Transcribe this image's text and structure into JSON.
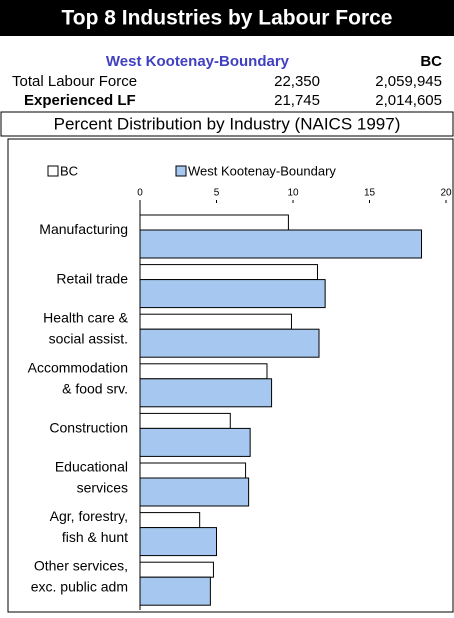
{
  "header": {
    "title": "Top 8 Industries by Labour Force",
    "columns": [
      "West Kootenay-Boundary",
      "BC"
    ],
    "rows": [
      [
        "Total Labour Force",
        "22,350",
        "2,059,945"
      ],
      [
        "Experienced LF",
        "21,745",
        "2,014,605"
      ]
    ],
    "subtitle": "Percent Distribution by Industry (NAICS 1997)"
  },
  "chart_data": {
    "type": "hbar",
    "categories": [
      [
        "Manufacturing"
      ],
      [
        "Retail trade"
      ],
      [
        "Health care &",
        "social assist."
      ],
      [
        "Accommodation",
        "& food srv."
      ],
      [
        "Construction"
      ],
      [
        "Educational",
        "services"
      ],
      [
        "Agr, forestry,",
        "fish & hunt"
      ],
      [
        "Other services,",
        "exc. public adm"
      ]
    ],
    "series": [
      {
        "name": "BC",
        "color": "#ffffff",
        "values": [
          9.7,
          11.6,
          9.9,
          8.3,
          5.9,
          6.9,
          3.9,
          4.8
        ]
      },
      {
        "name": "West Kootenay-Boundary",
        "color": "#a6c8f0",
        "values": [
          18.4,
          12.1,
          11.7,
          8.6,
          7.2,
          7.1,
          5.0,
          4.6
        ]
      }
    ],
    "xlim": [
      0,
      20
    ],
    "xticks": [
      0,
      5,
      10,
      15,
      20
    ]
  }
}
